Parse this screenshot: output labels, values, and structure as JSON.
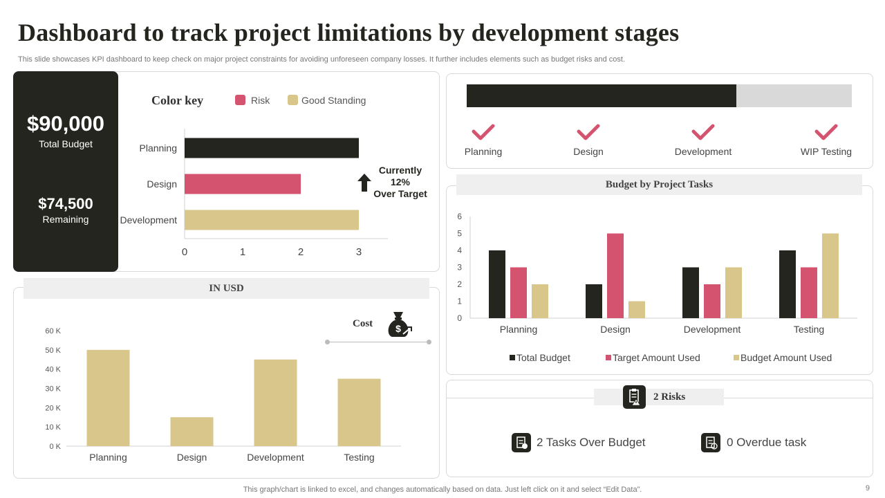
{
  "header": {
    "title": "Dashboard to track project limitations by development stages",
    "subtitle": "This slide showcases KPI dashboard to keep check on major project constraints for avoiding unforeseen company losses. It further includes elements such as budget risks and cost."
  },
  "budget_panel": {
    "total_value": "$90,000",
    "total_label": "Total Budget",
    "remaining_value": "$74,500",
    "remaining_label": "Remaining"
  },
  "color_key": {
    "title": "Color key",
    "risk_label": "Risk",
    "good_label": "Good Standing"
  },
  "over_target": {
    "line1": "Currently",
    "line2": "12%",
    "line3": "Over Target"
  },
  "progress": {
    "fraction": 0.7,
    "stages": [
      "Planning",
      "Design",
      "Development",
      "WIP Testing"
    ]
  },
  "usd_panel": {
    "band_label": "IN USD",
    "cost_label": "Cost"
  },
  "tasks_panel": {
    "band_label": "Budget by Project Tasks"
  },
  "risks_panel": {
    "band_label": "2 Risks",
    "over_budget": "2 Tasks Over Budget",
    "overdue": "0 Overdue task"
  },
  "footer": {
    "note": "This graph/chart is linked to excel,  and changes automatically based on data. Just left click on it and select “Edit Data”.",
    "page": "9"
  },
  "colors": {
    "dark": "#25251f",
    "risk": "#d45470",
    "good": "#d9c68a",
    "track": "#d9d9d9"
  },
  "chart_data": [
    {
      "type": "bar",
      "orientation": "horizontal",
      "categories": [
        "Planning",
        "Design",
        "Development"
      ],
      "values": [
        3,
        2,
        3
      ],
      "status": [
        "dark",
        "risk",
        "good"
      ],
      "xlim": [
        0,
        3.5
      ],
      "xticks": [
        "0",
        "1",
        "2",
        "3"
      ]
    },
    {
      "type": "bar",
      "title": "Cost",
      "categories": [
        "Planning",
        "Design",
        "Development",
        "Testing"
      ],
      "values": [
        50000,
        15000,
        45000,
        35000
      ],
      "ylim": [
        0,
        60000
      ],
      "yticks": [
        "0 K",
        "10 K",
        "20 K",
        "30 K",
        "40 K",
        "50 K",
        "60 K"
      ]
    },
    {
      "type": "bar",
      "title": "Budget by Project Tasks",
      "categories": [
        "Planning",
        "Design",
        "Development",
        "Testing"
      ],
      "series": [
        {
          "name": "Total Budget",
          "values": [
            4,
            2,
            3,
            4
          ]
        },
        {
          "name": "Target Amount Used",
          "values": [
            3,
            5,
            2,
            3
          ]
        },
        {
          "name": "Budget Amount Used",
          "values": [
            2,
            1,
            3,
            5
          ]
        }
      ],
      "ylim": [
        0,
        6
      ],
      "yticks": [
        "0",
        "1",
        "2",
        "3",
        "4",
        "5",
        "6"
      ]
    }
  ]
}
